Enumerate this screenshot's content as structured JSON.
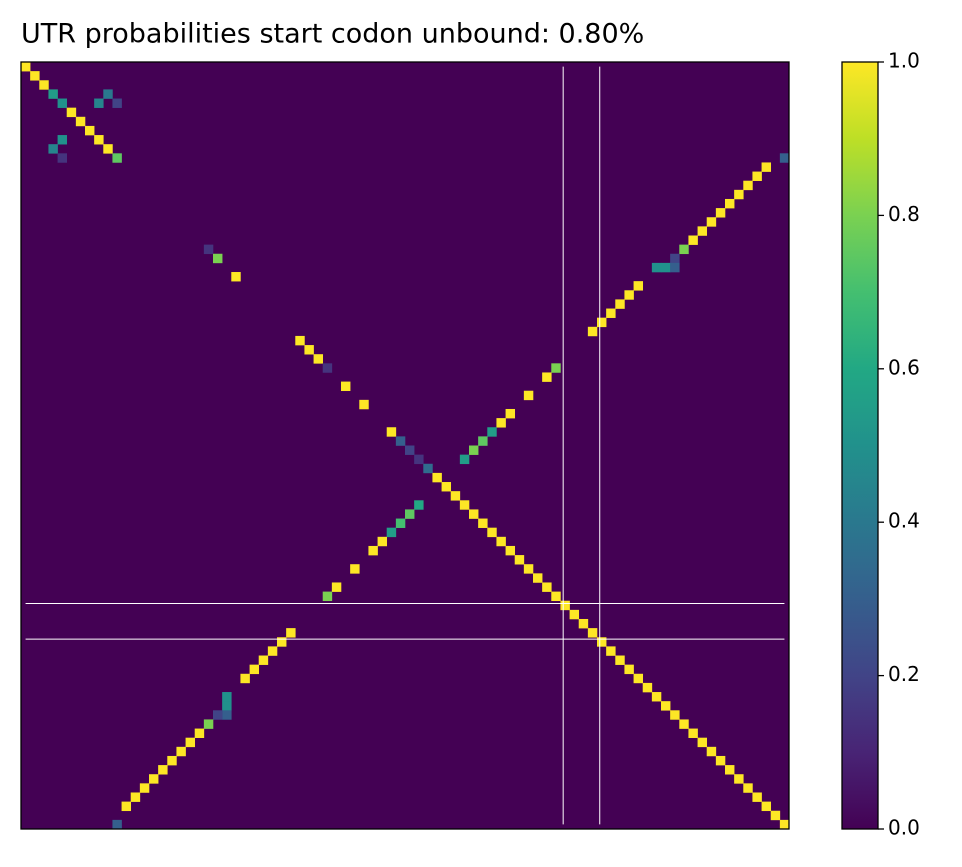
{
  "chart_data": {
    "type": "heatmap",
    "title": "UTR probabilities start codon unbound: 0.80%",
    "colormap": "viridis",
    "xlim": [
      0,
      84
    ],
    "ylim": [
      84,
      0
    ],
    "clim": [
      0,
      1
    ],
    "cticks": [
      {
        "value": 0,
        "label": "0.0"
      },
      0.2,
      0.4,
      0.6,
      0.8,
      {
        "value": 1,
        "label": "1.0"
      }
    ],
    "vlines": [
      59.3,
      63.3
    ],
    "hlines": [
      59.3,
      63.2
    ],
    "line_color": "#ffffff",
    "cells": [
      [
        0,
        0,
        1
      ],
      [
        1,
        1,
        1
      ],
      [
        2,
        2,
        1
      ],
      [
        3,
        3,
        0.55
      ],
      [
        4,
        4,
        0.5
      ],
      [
        5,
        5,
        1
      ],
      [
        6,
        6,
        1
      ],
      [
        7,
        7,
        1
      ],
      [
        8,
        8,
        1
      ],
      [
        9,
        9,
        1
      ],
      [
        10,
        10,
        0.75
      ],
      [
        3,
        9,
        0.4
      ],
      [
        4,
        8,
        0.45
      ],
      [
        4,
        10,
        0.2
      ],
      [
        8,
        4,
        0.5
      ],
      [
        9,
        3,
        0.45
      ],
      [
        10,
        4,
        0.15
      ],
      [
        20,
        20,
        0.15
      ],
      [
        21,
        21,
        0.8
      ],
      [
        23,
        23,
        1
      ],
      [
        30,
        30,
        1
      ],
      [
        31,
        31,
        1
      ],
      [
        32,
        32,
        1
      ],
      [
        33,
        33,
        0.15
      ],
      [
        35,
        35,
        1
      ],
      [
        37,
        37,
        1
      ],
      [
        40,
        40,
        1
      ],
      [
        41,
        41,
        0.3
      ],
      [
        42,
        42,
        0.2
      ],
      [
        43,
        43,
        0.15
      ],
      [
        44,
        44,
        0.35
      ],
      [
        45,
        45,
        1
      ],
      [
        46,
        46,
        1
      ],
      [
        47,
        47,
        1
      ],
      [
        48,
        48,
        1
      ],
      [
        49,
        49,
        1
      ],
      [
        50,
        50,
        1
      ],
      [
        51,
        51,
        1
      ],
      [
        52,
        52,
        1
      ],
      [
        53,
        53,
        1
      ],
      [
        54,
        54,
        1
      ],
      [
        55,
        55,
        1
      ],
      [
        56,
        56,
        1
      ],
      [
        57,
        57,
        1
      ],
      [
        58,
        58,
        1
      ],
      [
        59,
        59,
        1
      ],
      [
        60,
        60,
        1
      ],
      [
        61,
        61,
        1
      ],
      [
        62,
        62,
        1
      ],
      [
        63,
        63,
        1
      ],
      [
        64,
        64,
        1
      ],
      [
        65,
        65,
        1
      ],
      [
        66,
        66,
        1
      ],
      [
        67,
        67,
        1
      ],
      [
        68,
        68,
        1
      ],
      [
        69,
        69,
        1
      ],
      [
        70,
        70,
        1
      ],
      [
        71,
        71,
        1
      ],
      [
        72,
        72,
        1
      ],
      [
        73,
        73,
        1
      ],
      [
        74,
        74,
        1
      ],
      [
        75,
        75,
        1
      ],
      [
        76,
        76,
        1
      ],
      [
        77,
        77,
        1
      ],
      [
        78,
        78,
        1
      ],
      [
        79,
        79,
        1
      ],
      [
        80,
        80,
        1
      ],
      [
        81,
        81,
        1
      ],
      [
        82,
        82,
        1
      ],
      [
        83,
        83,
        1
      ],
      [
        10,
        83,
        0.3
      ],
      [
        11,
        81,
        1
      ],
      [
        12,
        80,
        1
      ],
      [
        13,
        79,
        1
      ],
      [
        14,
        78,
        1
      ],
      [
        15,
        77,
        1
      ],
      [
        16,
        76,
        1
      ],
      [
        17,
        75,
        1
      ],
      [
        18,
        74,
        1
      ],
      [
        19,
        73,
        1
      ],
      [
        20,
        72,
        0.8
      ],
      [
        21,
        71,
        0.2
      ],
      [
        22,
        69,
        0.5
      ],
      [
        22,
        70,
        0.5
      ],
      [
        22,
        71,
        0.3
      ],
      [
        24,
        67,
        1
      ],
      [
        25,
        66,
        1
      ],
      [
        26,
        65,
        1
      ],
      [
        27,
        64,
        1
      ],
      [
        28,
        63,
        1
      ],
      [
        29,
        62,
        1
      ],
      [
        33,
        58,
        0.8
      ],
      [
        34,
        57,
        1
      ],
      [
        36,
        55,
        1
      ],
      [
        38,
        53,
        1
      ],
      [
        39,
        52,
        1
      ],
      [
        40,
        51,
        0.55
      ],
      [
        41,
        50,
        0.75
      ],
      [
        42,
        49,
        0.8
      ],
      [
        43,
        48,
        0.55
      ],
      [
        48,
        43,
        0.6
      ],
      [
        49,
        42,
        0.75
      ],
      [
        50,
        41,
        0.7
      ],
      [
        51,
        40,
        0.55
      ],
      [
        52,
        39,
        1
      ],
      [
        53,
        38,
        1
      ],
      [
        55,
        36,
        1
      ],
      [
        57,
        34,
        1
      ],
      [
        58,
        33,
        0.8
      ],
      [
        62,
        29,
        1
      ],
      [
        63,
        28,
        1
      ],
      [
        64,
        27,
        1
      ],
      [
        65,
        26,
        1
      ],
      [
        66,
        25,
        1
      ],
      [
        67,
        24,
        1
      ],
      [
        69,
        22,
        0.5
      ],
      [
        70,
        22,
        0.5
      ],
      [
        71,
        22,
        0.3
      ],
      [
        71,
        21,
        0.2
      ],
      [
        72,
        20,
        0.8
      ],
      [
        73,
        19,
        1
      ],
      [
        74,
        18,
        1
      ],
      [
        75,
        17,
        1
      ],
      [
        76,
        16,
        1
      ],
      [
        77,
        15,
        1
      ],
      [
        78,
        14,
        1
      ],
      [
        79,
        13,
        1
      ],
      [
        80,
        12,
        1
      ],
      [
        81,
        11,
        1
      ],
      [
        83,
        10,
        0.3
      ]
    ]
  }
}
